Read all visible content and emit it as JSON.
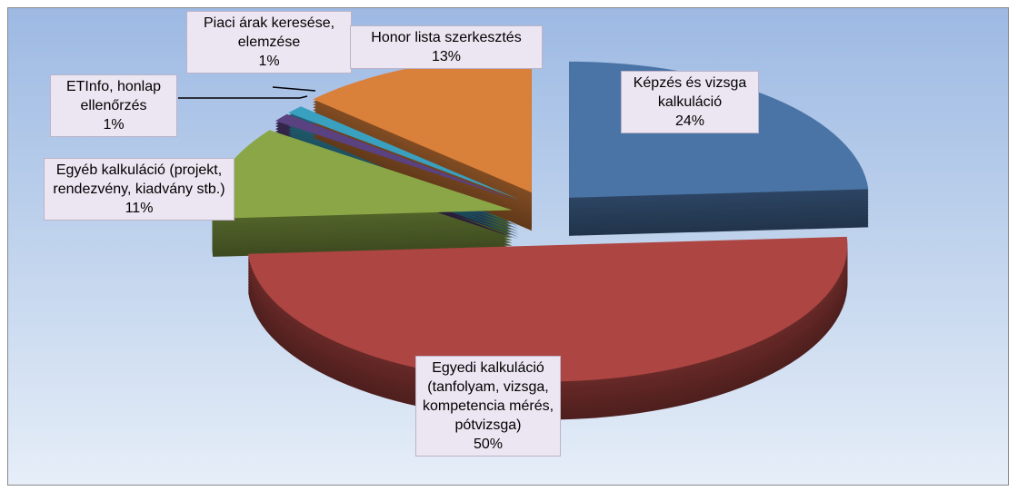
{
  "chart_data": {
    "type": "pie3d",
    "categories": [
      "Képzés és vizsga kalkuláció",
      "Egyedi kalkuláció (tanfolyam, vizsga, kompetencia mérés, pótvizsga)",
      "Egyéb kalkuláció (projekt, rendezvény, kiadvány stb.)",
      "ETInfo, honlap ellenőrzés",
      "Piaci árak keresése, elemzése",
      "Honor lista szerkesztés"
    ],
    "values": [
      24,
      50,
      11,
      1,
      1,
      13
    ],
    "value_labels": [
      "24%",
      "50%",
      "11%",
      "1%",
      "1%",
      "13%"
    ],
    "colors": [
      "#4a74a6",
      "#ad4542",
      "#8aa646",
      "#5a4180",
      "#3aa0c0",
      "#d9803a"
    ]
  }
}
